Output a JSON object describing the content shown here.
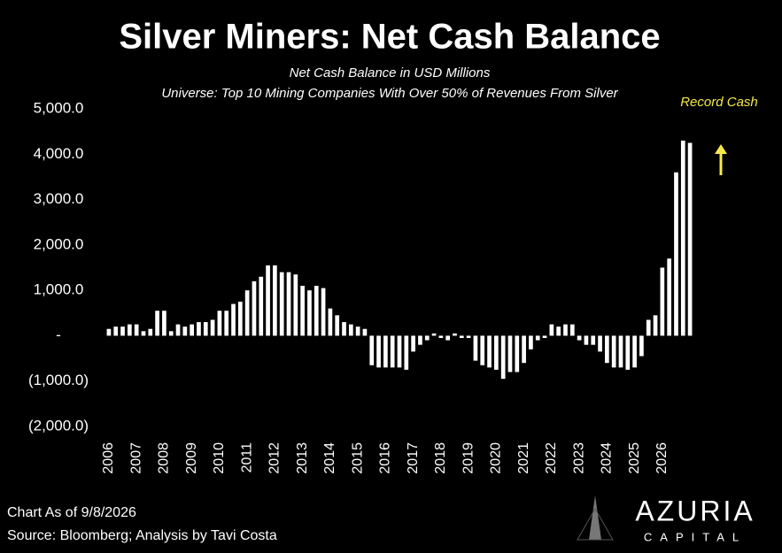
{
  "chart_data": {
    "type": "bar",
    "title": "Silver Miners: Net Cash Balance",
    "subtitle": "Net Cash Balance in USD Millions",
    "subtitle2": "Universe: Top 10 Mining Companies With Over 50% of Revenues From Silver",
    "annotation": "Record Cash",
    "footnote": "Chart As of 9/8/2026",
    "source": "Source: Bloomberg; Analysis by Tavi Costa",
    "brand": "AZURIA",
    "brand_sub": "CAPITAL",
    "color": "#ffffff",
    "categories": [
      "2006",
      null,
      null,
      null,
      "2007",
      null,
      null,
      null,
      "2008",
      null,
      null,
      null,
      "2009",
      null,
      null,
      null,
      "2010",
      null,
      null,
      null,
      "2011",
      null,
      null,
      null,
      "2012",
      null,
      null,
      null,
      "2013",
      null,
      null,
      null,
      "2014",
      null,
      null,
      null,
      "2015",
      null,
      null,
      null,
      "2016",
      null,
      null,
      null,
      "2017",
      null,
      null,
      null,
      "2018",
      null,
      null,
      null,
      "2019",
      null,
      null,
      null,
      "2020",
      null,
      null,
      null,
      "2021",
      null,
      null,
      null,
      "2022",
      null,
      null,
      null,
      "2023",
      null,
      null,
      null,
      "2024",
      null,
      null,
      null,
      "2025",
      null,
      null,
      null,
      "2026",
      null,
      null,
      null,
      null
    ],
    "values": [
      150,
      200,
      200,
      250,
      250,
      100,
      150,
      550,
      550,
      100,
      250,
      200,
      250,
      300,
      300,
      350,
      550,
      550,
      700,
      750,
      1000,
      1200,
      1300,
      1550,
      1550,
      1400,
      1400,
      1350,
      1100,
      1000,
      1100,
      1050,
      600,
      450,
      300,
      250,
      200,
      150,
      -650,
      -700,
      -700,
      -700,
      -700,
      -750,
      -350,
      -200,
      -100,
      50,
      -50,
      -100,
      50,
      -50,
      -50,
      -550,
      -650,
      -700,
      -750,
      -950,
      -800,
      -800,
      -600,
      -300,
      -100,
      -50,
      250,
      200,
      250,
      250,
      -100,
      -200,
      -200,
      -350,
      -600,
      -700,
      -700,
      -750,
      -700,
      -450,
      350,
      450,
      1500,
      1700,
      3600,
      4300,
      4250
    ],
    "ylim": [
      -2000,
      5000
    ],
    "yticks": [
      {
        "value": 5000,
        "label": "5,000.0"
      },
      {
        "value": 4000,
        "label": "4,000.0"
      },
      {
        "value": 3000,
        "label": "3,000.0"
      },
      {
        "value": 2000,
        "label": "2,000.0"
      },
      {
        "value": 1000,
        "label": "1,000.0"
      },
      {
        "value": 0,
        "label": "-"
      },
      {
        "value": -1000,
        "label": "(1,000.0)"
      },
      {
        "value": -2000,
        "label": "(2,000.0)"
      }
    ],
    "grid": false
  }
}
